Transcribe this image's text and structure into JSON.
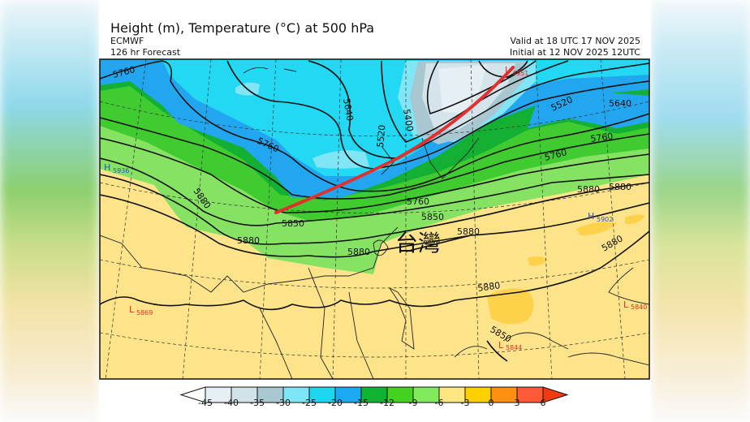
{
  "header": {
    "title": "Height (m), Temperature (°C) at 500 hPa",
    "model": "ECMWF",
    "forecast": "126 hr Forecast",
    "valid": "Valid at 18 UTC 17 NOV 2025",
    "initial": "Initial at 12 NOV 2025 12UTC"
  },
  "map": {
    "place_label": "台灣",
    "contour_labels": [
      "5760",
      "5760",
      "5640",
      "5520",
      "5400",
      "5520",
      "5640",
      "5760",
      "5760",
      "5760",
      "5880",
      "5850",
      "5850",
      "5880",
      "5880",
      "5880",
      "5880",
      "5880",
      "5880",
      "5880",
      "5850"
    ],
    "centers": [
      {
        "type": "H",
        "value": "5936",
        "color": "#3050c0"
      },
      {
        "type": "H",
        "value": "5902",
        "color": "#3050c0"
      },
      {
        "type": "L",
        "value": "4951",
        "color": "#e03020"
      },
      {
        "type": "L",
        "value": "5869",
        "color": "#e03020"
      },
      {
        "type": "L",
        "value": "5840",
        "color": "#e03020"
      },
      {
        "type": "L",
        "value": "5844",
        "color": "#e03020"
      }
    ],
    "annotation_line_color": "#e03030"
  },
  "colorbar": {
    "labels": [
      "-45",
      "-40",
      "-35",
      "-30",
      "-25",
      "-20",
      "-15",
      "-12",
      "-9",
      "-6",
      "-3",
      "0",
      "3",
      "6"
    ],
    "colors": [
      "#e6eff3",
      "#d2e3e8",
      "#a8c8d2",
      "#7ee6f6",
      "#1fd6f2",
      "#1ea8f2",
      "#12b233",
      "#45d11f",
      "#80ea5c",
      "#ffe680",
      "#ffd000",
      "#ff9012",
      "#ff5a36"
    ],
    "under_color": "#ffffff",
    "over_color": "#f03a10"
  }
}
